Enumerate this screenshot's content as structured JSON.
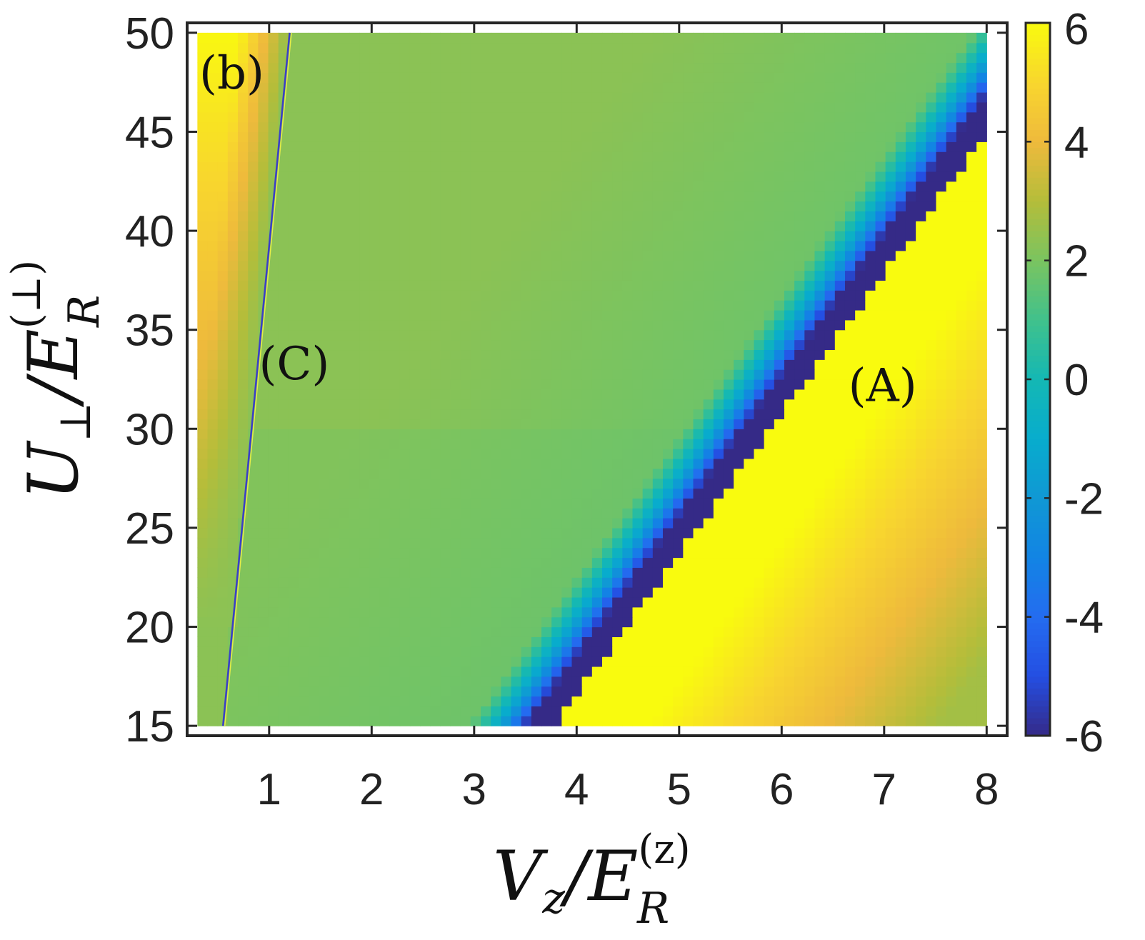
{
  "chart_data": {
    "type": "heatmap",
    "panel_label": "(b)",
    "xlabel": {
      "main": "V",
      "sub": "z",
      "sep": "/E",
      "sub2": "R",
      "sup": "(z)"
    },
    "ylabel": {
      "main": "U",
      "sub": "⊥",
      "sep": "/E",
      "sub2": "R",
      "sup": "(⊥)"
    },
    "xlim": [
      0.2,
      8.2
    ],
    "ylim": [
      14.5,
      50.5
    ],
    "data_x_range": [
      0.3,
      8.0
    ],
    "data_y_range": [
      15,
      50
    ],
    "xticks": [
      1,
      2,
      3,
      4,
      5,
      6,
      7,
      8
    ],
    "yticks": [
      15,
      20,
      25,
      30,
      35,
      40,
      45,
      50
    ],
    "colorbar": {
      "range": [
        -6,
        6
      ],
      "ticks": [
        -6,
        -4,
        -2,
        0,
        2,
        4,
        6
      ],
      "tick_labels": [
        "-6",
        "-4",
        "-2",
        "0",
        "2",
        "4",
        "6"
      ],
      "colormap": "parula"
    },
    "annotations": [
      {
        "text": "(A)",
        "x": 6.65,
        "y": 32.2
      },
      {
        "text": "(C)",
        "x": 0.9,
        "y": 33.3
      }
    ],
    "features": {
      "resonance_A": {
        "v_at_u15": 3.78,
        "v_at_u45": 8.0,
        "description_value_left": -6,
        "value_right": 6
      },
      "resonance_C": {
        "v_at_u15": 0.55,
        "v_at_u50": 1.2
      }
    }
  }
}
